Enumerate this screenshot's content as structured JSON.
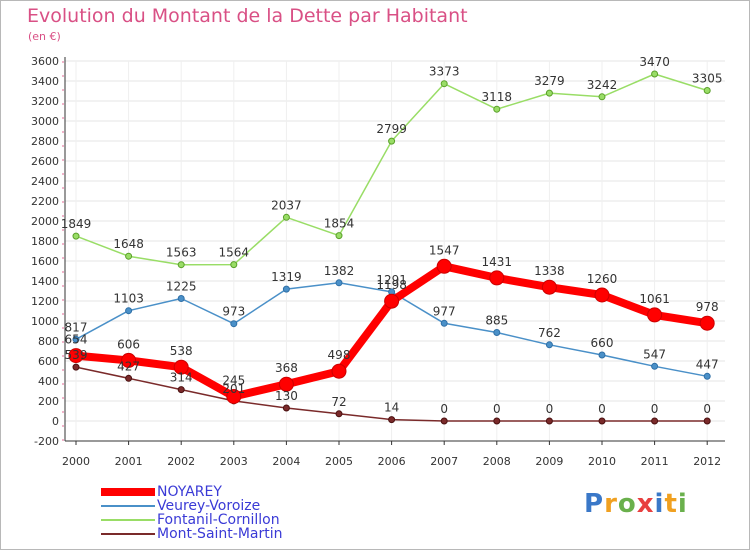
{
  "chart_data": {
    "type": "line",
    "title": "Evolution du Montant de la Dette par Habitant",
    "subtitle": "(en €)",
    "categories": [
      "2000",
      "2001",
      "2002",
      "2003",
      "2004",
      "2005",
      "2006",
      "2007",
      "2008",
      "2009",
      "2010",
      "2011",
      "2012"
    ],
    "ylim": [
      -200,
      3600
    ],
    "yticks": [
      -200,
      0,
      200,
      400,
      600,
      800,
      1000,
      1200,
      1400,
      1600,
      1800,
      2000,
      2200,
      2400,
      2600,
      2800,
      3000,
      3200,
      3400,
      3600
    ],
    "grid": true,
    "legend_position": "bottom-left",
    "series": [
      {
        "name": "NOYAREY",
        "color": "#ff0000",
        "values": [
          654,
          606,
          538,
          245,
          368,
          498,
          1198,
          1547,
          1431,
          1338,
          1260,
          1061,
          978
        ]
      },
      {
        "name": "Veurey-Voroize",
        "color": "#4a90c8",
        "values": [
          817,
          1103,
          1225,
          973,
          1319,
          1382,
          1291,
          977,
          885,
          762,
          660,
          547,
          447
        ]
      },
      {
        "name": "Fontanil-Cornillon",
        "color": "#99dd66",
        "values": [
          1849,
          1648,
          1563,
          1564,
          2037,
          1854,
          2799,
          3373,
          3118,
          3279,
          3242,
          3470,
          3305
        ]
      },
      {
        "name": "Mont-Saint-Martin",
        "color": "#7a2a2a",
        "values": [
          539,
          427,
          314,
          201,
          130,
          72,
          14,
          0,
          0,
          0,
          0,
          0,
          0
        ]
      }
    ]
  },
  "brand": {
    "letters": [
      "P",
      "r",
      "o",
      "x",
      "i",
      "t",
      "i"
    ],
    "colors": [
      "#3a78c8",
      "#f0a020",
      "#6ab04c",
      "#e84040",
      "#3a78c8",
      "#f0a020",
      "#6ab04c"
    ]
  }
}
